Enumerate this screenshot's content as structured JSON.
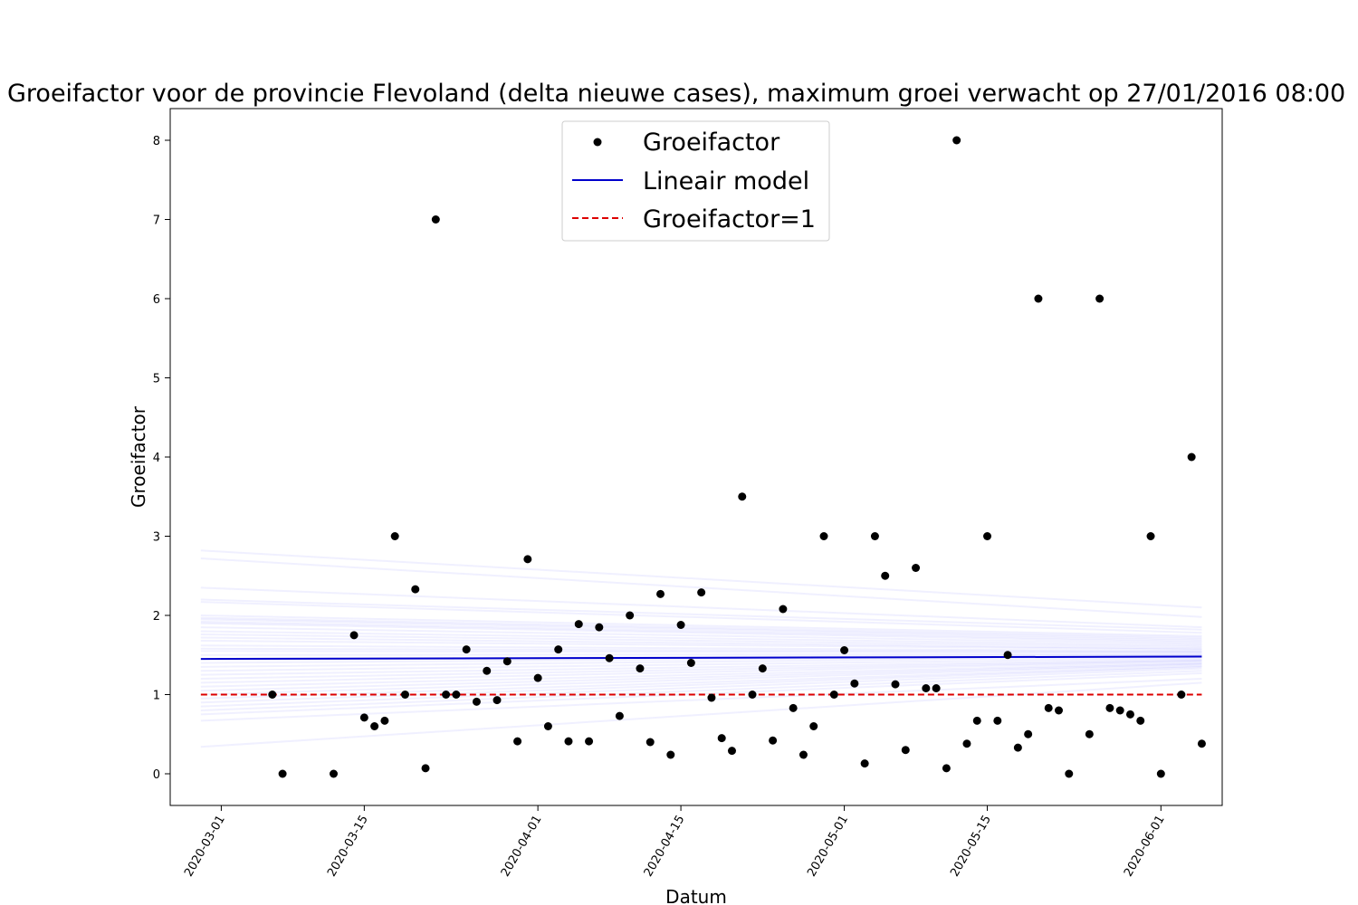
{
  "chart_data": {
    "type": "scatter",
    "title": "Groeifactor voor de provincie Flevoland (delta nieuwe cases), maximum groei verwacht op 27/01/2016 08:00",
    "xlabel": "Datum",
    "ylabel": "Groeifactor",
    "xlim": [
      "2020-02-25",
      "2020-06-07"
    ],
    "ylim": [
      -0.4,
      8.4
    ],
    "x_ticks": [
      "2020-03-01",
      "2020-03-15",
      "2020-04-01",
      "2020-04-15",
      "2020-05-01",
      "2020-05-15",
      "2020-06-01"
    ],
    "y_ticks": [
      0,
      1,
      2,
      3,
      4,
      5,
      6,
      7,
      8
    ],
    "legend_position": "top-center",
    "colors": {
      "points": "#000000",
      "model": "#0000cc",
      "reference": "#dd0000",
      "samples": "#5555ff"
    },
    "series": [
      {
        "name": "Groeifactor",
        "kind": "points",
        "points": [
          [
            "2020-03-06",
            1.0
          ],
          [
            "2020-03-07",
            0.0
          ],
          [
            "2020-03-12",
            0.0
          ],
          [
            "2020-03-14",
            1.75
          ],
          [
            "2020-03-15",
            0.71
          ],
          [
            "2020-03-16",
            0.6
          ],
          [
            "2020-03-17",
            0.67
          ],
          [
            "2020-03-18",
            3.0
          ],
          [
            "2020-03-19",
            1.0
          ],
          [
            "2020-03-20",
            2.33
          ],
          [
            "2020-03-21",
            0.07
          ],
          [
            "2020-03-22",
            7.0
          ],
          [
            "2020-03-23",
            1.0
          ],
          [
            "2020-03-24",
            1.0
          ],
          [
            "2020-03-25",
            1.57
          ],
          [
            "2020-03-26",
            0.91
          ],
          [
            "2020-03-27",
            1.3
          ],
          [
            "2020-03-28",
            0.93
          ],
          [
            "2020-03-29",
            1.42
          ],
          [
            "2020-03-30",
            0.41
          ],
          [
            "2020-03-31",
            2.71
          ],
          [
            "2020-04-01",
            1.21
          ],
          [
            "2020-04-02",
            0.6
          ],
          [
            "2020-04-03",
            1.57
          ],
          [
            "2020-04-04",
            0.41
          ],
          [
            "2020-04-05",
            1.89
          ],
          [
            "2020-04-06",
            0.41
          ],
          [
            "2020-04-07",
            1.85
          ],
          [
            "2020-04-08",
            1.46
          ],
          [
            "2020-04-09",
            0.73
          ],
          [
            "2020-04-10",
            2.0
          ],
          [
            "2020-04-11",
            1.33
          ],
          [
            "2020-04-12",
            0.4
          ],
          [
            "2020-04-13",
            2.27
          ],
          [
            "2020-04-14",
            0.24
          ],
          [
            "2020-04-15",
            1.88
          ],
          [
            "2020-04-16",
            1.4
          ],
          [
            "2020-04-17",
            2.29
          ],
          [
            "2020-04-18",
            0.96
          ],
          [
            "2020-04-19",
            0.45
          ],
          [
            "2020-04-20",
            0.29
          ],
          [
            "2020-04-21",
            3.5
          ],
          [
            "2020-04-22",
            1.0
          ],
          [
            "2020-04-23",
            1.33
          ],
          [
            "2020-04-24",
            0.42
          ],
          [
            "2020-04-25",
            2.08
          ],
          [
            "2020-04-26",
            0.83
          ],
          [
            "2020-04-27",
            0.24
          ],
          [
            "2020-04-28",
            0.6
          ],
          [
            "2020-04-29",
            3.0
          ],
          [
            "2020-04-30",
            1.0
          ],
          [
            "2020-05-01",
            1.56
          ],
          [
            "2020-05-02",
            1.14
          ],
          [
            "2020-05-03",
            0.13
          ],
          [
            "2020-05-04",
            3.0
          ],
          [
            "2020-05-05",
            2.5
          ],
          [
            "2020-05-06",
            1.13
          ],
          [
            "2020-05-07",
            0.3
          ],
          [
            "2020-05-08",
            2.6
          ],
          [
            "2020-05-09",
            1.08
          ],
          [
            "2020-05-10",
            1.08
          ],
          [
            "2020-05-11",
            0.07
          ],
          [
            "2020-05-12",
            8.0
          ],
          [
            "2020-05-13",
            0.38
          ],
          [
            "2020-05-14",
            0.67
          ],
          [
            "2020-05-15",
            3.0
          ],
          [
            "2020-05-16",
            0.67
          ],
          [
            "2020-05-17",
            1.5
          ],
          [
            "2020-05-18",
            0.33
          ],
          [
            "2020-05-19",
            0.5
          ],
          [
            "2020-05-20",
            6.0
          ],
          [
            "2020-05-21",
            0.83
          ],
          [
            "2020-05-22",
            0.8
          ],
          [
            "2020-05-23",
            0.0
          ],
          [
            "2020-05-25",
            0.5
          ],
          [
            "2020-05-26",
            6.0
          ],
          [
            "2020-05-27",
            0.83
          ],
          [
            "2020-05-28",
            0.8
          ],
          [
            "2020-05-29",
            0.75
          ],
          [
            "2020-05-30",
            0.67
          ],
          [
            "2020-05-31",
            3.0
          ],
          [
            "2020-06-01",
            0.0
          ],
          [
            "2020-06-03",
            1.0
          ],
          [
            "2020-06-04",
            4.0
          ],
          [
            "2020-06-05",
            0.38
          ]
        ]
      },
      {
        "name": "Lineair model",
        "kind": "line",
        "points": [
          [
            "2020-02-28",
            1.45
          ],
          [
            "2020-06-05",
            1.48
          ]
        ]
      },
      {
        "name": "Groeifactor=1",
        "kind": "dashed",
        "points": [
          [
            "2020-02-28",
            1.0
          ],
          [
            "2020-06-05",
            1.0
          ]
        ]
      }
    ],
    "sample_lines": [
      [
        2.82,
        2.1
      ],
      [
        2.72,
        1.98
      ],
      [
        2.35,
        1.85
      ],
      [
        2.2,
        1.82
      ],
      [
        2.17,
        1.78
      ],
      [
        2.0,
        1.74
      ],
      [
        1.97,
        1.72
      ],
      [
        1.95,
        1.7
      ],
      [
        1.92,
        1.68
      ],
      [
        1.9,
        1.66
      ],
      [
        1.85,
        1.64
      ],
      [
        1.8,
        1.62
      ],
      [
        1.76,
        1.6
      ],
      [
        1.72,
        1.58
      ],
      [
        1.68,
        1.57
      ],
      [
        1.62,
        1.55
      ],
      [
        1.58,
        1.54
      ],
      [
        1.55,
        1.53
      ],
      [
        1.5,
        1.51
      ],
      [
        1.45,
        1.5
      ],
      [
        1.4,
        1.49
      ],
      [
        1.35,
        1.48
      ],
      [
        1.3,
        1.46
      ],
      [
        1.25,
        1.44
      ],
      [
        1.2,
        1.43
      ],
      [
        1.15,
        1.42
      ],
      [
        1.1,
        1.4
      ],
      [
        1.05,
        1.39
      ],
      [
        1.0,
        1.38
      ],
      [
        0.95,
        1.36
      ],
      [
        0.9,
        1.35
      ],
      [
        0.85,
        1.33
      ],
      [
        0.8,
        1.3
      ],
      [
        0.75,
        1.27
      ],
      [
        0.67,
        1.2
      ],
      [
        0.34,
        1.15
      ]
    ]
  }
}
